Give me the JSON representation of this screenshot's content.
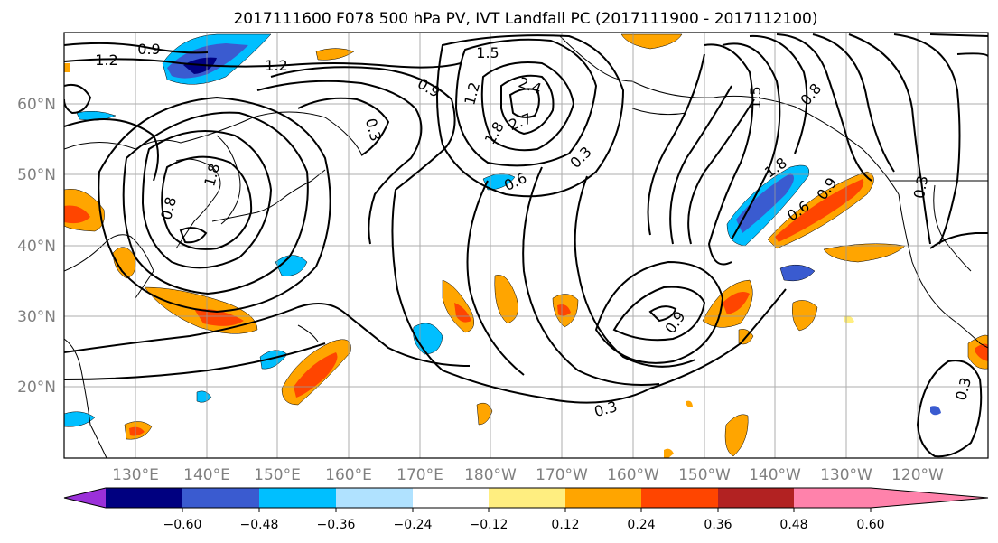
{
  "title": "2017111600 F078 500 hPa PV, IVT Landfall PC (2017111900 - 2017112100)",
  "map": {
    "lat_labels": [
      "20°N",
      "30°N",
      "40°N",
      "50°N",
      "60°N"
    ],
    "lon_labels": [
      "130°E",
      "140°E",
      "150°E",
      "160°E",
      "170°E",
      "180°W",
      "170°W",
      "160°W",
      "150°W",
      "140°W",
      "130°W",
      "120°W"
    ],
    "contour_labels": [
      "0.9",
      "1.2",
      "1.2",
      "1.5",
      "1.5",
      "2.4",
      "2.7",
      "1.8",
      "0.9",
      "0.6",
      "0.3",
      "0.3",
      "1.8",
      "0.6",
      "0.9",
      "1.2",
      "0.3",
      "0.9",
      "0.3",
      "0.3",
      "0.8",
      "1.8",
      "0.8"
    ]
  },
  "colorbar": {
    "ticks": [
      "−0.60",
      "−0.48",
      "−0.36",
      "−0.24",
      "−0.12",
      "0.12",
      "0.24",
      "0.36",
      "0.48",
      "0.60"
    ],
    "colors": [
      "#9b30d9",
      "#000080",
      "#3a5bd0",
      "#00bfff",
      "#b0e2ff",
      "#ffffff",
      "#ffee80",
      "#ffa500",
      "#ff4500",
      "#b22222",
      "#ff82ab"
    ]
  }
}
